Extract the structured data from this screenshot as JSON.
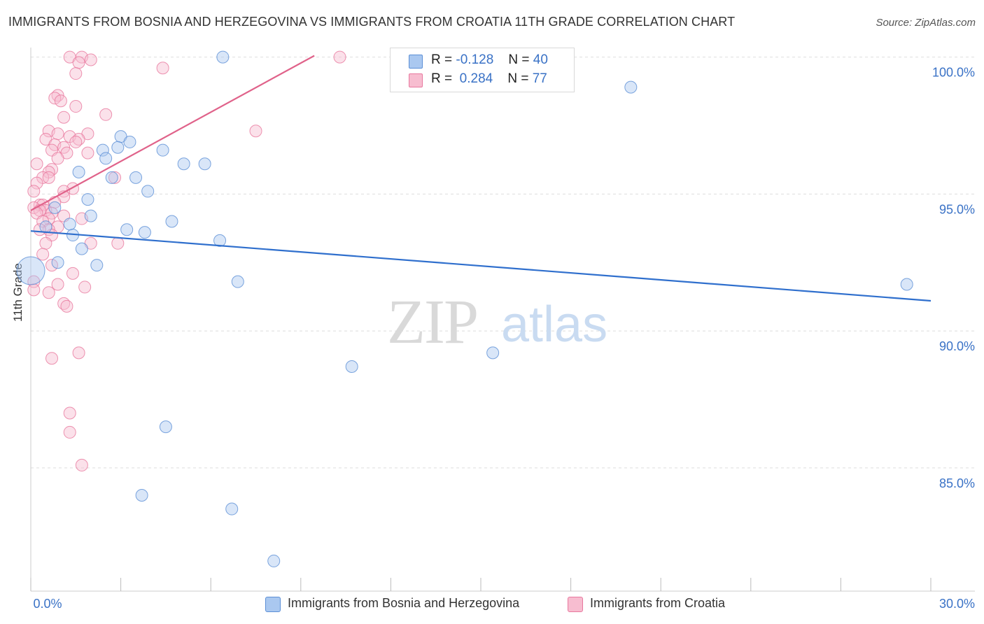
{
  "title": "IMMIGRANTS FROM BOSNIA AND HERZEGOVINA VS IMMIGRANTS FROM CROATIA 11TH GRADE CORRELATION CHART",
  "source": "Source: ZipAtlas.com",
  "watermark": {
    "zip": "ZIP",
    "atlas": "atlas"
  },
  "legend": {
    "r_label": "R =",
    "n_label": "N =",
    "entries": [
      {
        "name": "Immigrants from Bosnia and Herzegovina",
        "r": "-0.128",
        "n": "40",
        "fill": "#aac8f0",
        "stroke": "#5b8fd6"
      },
      {
        "name": "Immigrants from Croatia",
        "r": "0.284",
        "n": "77",
        "fill": "#f7bdd0",
        "stroke": "#e8789e"
      }
    ]
  },
  "colors": {
    "blue_line": "#2f6fcd",
    "pink_line": "#e0628a",
    "tick_label": "#3a72c6",
    "grid": "#dedede"
  },
  "chart_data": {
    "type": "scatter",
    "title": "IMMIGRANTS FROM BOSNIA AND HERZEGOVINA VS IMMIGRANTS FROM CROATIA 11TH GRADE CORRELATION CHART",
    "xlabel": "",
    "ylabel": "11th Grade",
    "xlim": [
      0,
      30
    ],
    "ylim": [
      80.5,
      100.5
    ],
    "x_tick_labels": [
      {
        "value": 0,
        "label": "0.0%"
      },
      {
        "value": 30,
        "label": "30.0%"
      }
    ],
    "y_tick_labels": [
      {
        "value": 100,
        "label": "100.0%"
      },
      {
        "value": 95,
        "label": "95.0%"
      },
      {
        "value": 90,
        "label": "90.0%"
      },
      {
        "value": 85,
        "label": "85.0%"
      }
    ],
    "series": [
      {
        "name": "Immigrants from Bosnia and Herzegovina",
        "color": "#aac8f0",
        "trend": {
          "x": [
            0,
            30
          ],
          "y": [
            93.65,
            91.1
          ]
        },
        "points": [
          [
            6.4,
            100.0
          ],
          [
            20.0,
            98.9
          ],
          [
            3.0,
            97.1
          ],
          [
            3.3,
            96.9
          ],
          [
            2.4,
            96.6
          ],
          [
            2.9,
            96.7
          ],
          [
            4.4,
            96.6
          ],
          [
            2.5,
            96.3
          ],
          [
            5.1,
            96.1
          ],
          [
            5.8,
            96.1
          ],
          [
            1.6,
            95.8
          ],
          [
            2.7,
            95.6
          ],
          [
            3.5,
            95.6
          ],
          [
            3.9,
            95.1
          ],
          [
            1.9,
            94.8
          ],
          [
            0.8,
            94.5
          ],
          [
            2.0,
            94.2
          ],
          [
            4.7,
            94.0
          ],
          [
            1.3,
            93.9
          ],
          [
            0.5,
            93.8
          ],
          [
            3.2,
            93.7
          ],
          [
            3.8,
            93.6
          ],
          [
            1.4,
            93.5
          ],
          [
            6.3,
            93.3
          ],
          [
            1.7,
            93.0
          ],
          [
            0.9,
            92.5
          ],
          [
            2.2,
            92.4
          ],
          [
            0.0,
            92.2
          ],
          [
            6.9,
            91.8
          ],
          [
            29.2,
            91.7
          ],
          [
            10.7,
            88.7
          ],
          [
            15.4,
            89.2
          ],
          [
            4.5,
            86.5
          ],
          [
            3.7,
            84.0
          ],
          [
            6.7,
            83.5
          ],
          [
            8.1,
            81.6
          ]
        ]
      },
      {
        "name": "Immigrants from Croatia",
        "color": "#f7bdd0",
        "trend": {
          "x": [
            0,
            9.45
          ],
          "y": [
            94.4,
            100.05
          ]
        },
        "points": [
          [
            1.3,
            100.0
          ],
          [
            1.7,
            100.0
          ],
          [
            2.0,
            99.9
          ],
          [
            1.6,
            99.8
          ],
          [
            4.4,
            99.6
          ],
          [
            1.5,
            99.4
          ],
          [
            10.3,
            100.0
          ],
          [
            0.9,
            98.6
          ],
          [
            0.8,
            98.5
          ],
          [
            1.0,
            98.4
          ],
          [
            1.5,
            98.2
          ],
          [
            2.5,
            97.9
          ],
          [
            1.1,
            97.8
          ],
          [
            7.5,
            97.3
          ],
          [
            0.6,
            97.3
          ],
          [
            0.9,
            97.2
          ],
          [
            1.9,
            97.2
          ],
          [
            1.3,
            97.1
          ],
          [
            0.5,
            97.0
          ],
          [
            1.6,
            97.0
          ],
          [
            1.5,
            96.9
          ],
          [
            0.8,
            96.8
          ],
          [
            1.1,
            96.7
          ],
          [
            0.7,
            96.6
          ],
          [
            1.2,
            96.5
          ],
          [
            1.9,
            96.5
          ],
          [
            0.9,
            96.3
          ],
          [
            0.2,
            96.1
          ],
          [
            0.7,
            95.9
          ],
          [
            0.6,
            95.8
          ],
          [
            0.4,
            95.6
          ],
          [
            0.6,
            95.6
          ],
          [
            2.8,
            95.6
          ],
          [
            0.2,
            95.4
          ],
          [
            1.4,
            95.2
          ],
          [
            1.1,
            95.1
          ],
          [
            0.1,
            95.1
          ],
          [
            1.1,
            94.9
          ],
          [
            0.8,
            94.7
          ],
          [
            0.3,
            94.6
          ],
          [
            0.4,
            94.6
          ],
          [
            0.1,
            94.5
          ],
          [
            0.5,
            94.4
          ],
          [
            0.3,
            94.4
          ],
          [
            0.7,
            94.3
          ],
          [
            0.2,
            94.3
          ],
          [
            1.1,
            94.2
          ],
          [
            0.6,
            94.1
          ],
          [
            1.7,
            94.1
          ],
          [
            0.4,
            94.0
          ],
          [
            0.9,
            93.8
          ],
          [
            0.6,
            93.7
          ],
          [
            0.3,
            93.7
          ],
          [
            0.7,
            93.5
          ],
          [
            2.0,
            93.2
          ],
          [
            0.5,
            93.2
          ],
          [
            2.9,
            93.2
          ],
          [
            0.4,
            92.8
          ],
          [
            0.7,
            92.4
          ],
          [
            1.4,
            92.1
          ],
          [
            0.1,
            91.8
          ],
          [
            0.9,
            91.7
          ],
          [
            1.8,
            91.6
          ],
          [
            0.1,
            91.5
          ],
          [
            0.6,
            91.4
          ],
          [
            1.1,
            91.0
          ],
          [
            1.2,
            90.9
          ],
          [
            1.6,
            89.2
          ],
          [
            0.7,
            89.0
          ],
          [
            1.3,
            87.0
          ],
          [
            1.3,
            86.3
          ],
          [
            1.7,
            85.1
          ]
        ]
      }
    ]
  }
}
